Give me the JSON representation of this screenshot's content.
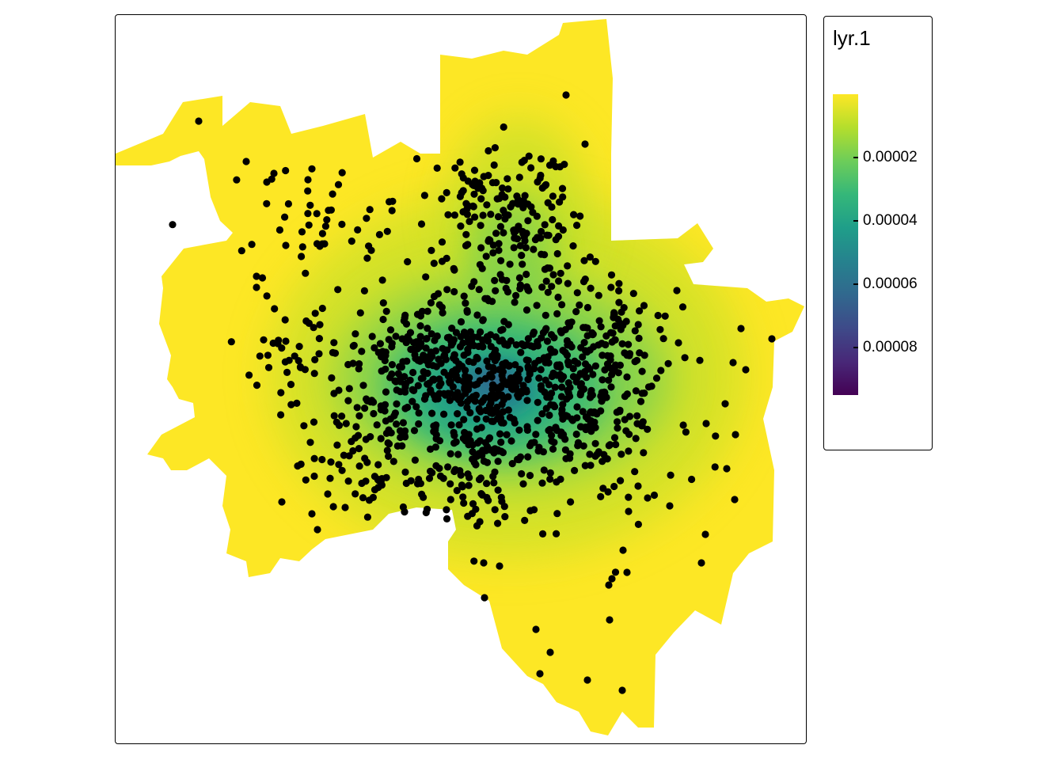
{
  "map": {
    "legend_title": "lyr.1",
    "colorscale": {
      "name": "viridis",
      "reversed": true,
      "stops": [
        "#FDE725",
        "#B4DE2C",
        "#6DCD59",
        "#35B779",
        "#1F9E89",
        "#26828E",
        "#31688E",
        "#3E4A89",
        "#482878",
        "#440154"
      ],
      "min": 0,
      "max": 9.5e-05
    },
    "legend_ticks": [
      {
        "value": 2e-05,
        "label": "0.00002"
      },
      {
        "value": 4e-05,
        "label": "0.00004"
      },
      {
        "value": 6e-05,
        "label": "0.00006"
      },
      {
        "value": 8e-05,
        "label": "0.00008"
      }
    ],
    "region_fill": "#FDE725",
    "point_color": "#000000"
  }
}
